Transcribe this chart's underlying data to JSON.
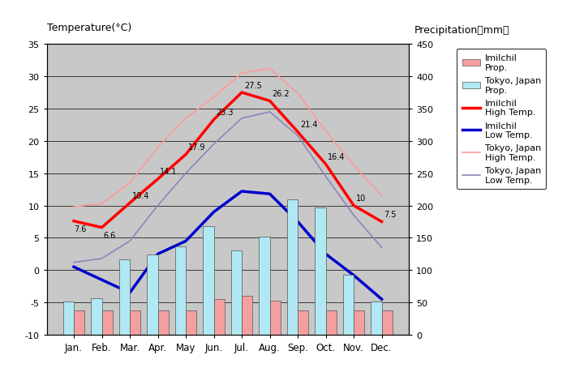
{
  "months": [
    "Jan.",
    "Feb.",
    "Mar.",
    "Apr.",
    "May",
    "Jun.",
    "Jul.",
    "Aug.",
    "Sep.",
    "Oct.",
    "Nov.",
    "Dec."
  ],
  "imilchil_high": [
    7.6,
    6.6,
    10.4,
    14.1,
    17.9,
    23.3,
    27.5,
    26.2,
    21.4,
    16.4,
    10.0,
    7.5
  ],
  "imilchil_low": [
    0.5,
    -1.5,
    -3.5,
    2.5,
    4.5,
    9.0,
    12.2,
    11.8,
    7.5,
    2.5,
    -0.8,
    -4.5
  ],
  "tokyo_high": [
    9.8,
    10.3,
    13.5,
    19.0,
    23.5,
    26.8,
    30.5,
    31.2,
    27.4,
    21.5,
    16.2,
    11.5
  ],
  "tokyo_low": [
    1.2,
    1.8,
    4.5,
    10.0,
    15.0,
    19.5,
    23.5,
    24.5,
    20.8,
    14.5,
    8.5,
    3.5
  ],
  "imilchil_precip_mm": [
    38,
    38,
    38,
    38,
    38,
    55,
    60,
    53,
    38,
    38,
    38,
    38
  ],
  "tokyo_precip_mm": [
    52,
    56,
    117,
    124,
    137,
    168,
    130,
    152,
    209,
    197,
    93,
    51
  ],
  "ylim_temp": [
    -10,
    35
  ],
  "ylim_precip": [
    0,
    450
  ],
  "bg_color": "#c8c8c8",
  "fig_color": "#ffffff",
  "imilchil_precip_color": "#f4a0a0",
  "tokyo_precip_color": "#b0e8f4",
  "imilchil_high_color": "#ff0000",
  "imilchil_low_color": "#0000cc",
  "tokyo_high_color": "#ff9999",
  "tokyo_low_color": "#8888bb",
  "title_left": "Temperature(°C)",
  "title_right": "Precipitation（mm）",
  "annotations": [
    [
      0,
      7.6,
      "7.6"
    ],
    [
      1,
      6.6,
      "6.6"
    ],
    [
      2,
      10.4,
      "10.4"
    ],
    [
      3,
      14.1,
      "14.1"
    ],
    [
      4,
      17.9,
      "17.9"
    ],
    [
      5,
      23.3,
      "23.3"
    ],
    [
      6,
      27.5,
      "27.5"
    ],
    [
      7,
      26.2,
      "26.2"
    ],
    [
      8,
      21.4,
      "21.4"
    ],
    [
      9,
      16.4,
      "16.4"
    ],
    [
      10,
      10.0,
      "10"
    ],
    [
      11,
      7.5,
      "7.5"
    ]
  ],
  "legend_labels": [
    "Imilchil\nProp.",
    "Tokyo, Japan\nProp.",
    "Imilchil\nHigh Temp.",
    "Imilchil\nLow Temp.",
    "Tokyo, Japan\nHigh Temp.",
    "Tokyo, Japan\nLow Temp."
  ],
  "temp_ticks": [
    -10,
    -5,
    0,
    5,
    10,
    15,
    20,
    25,
    30,
    35
  ],
  "precip_ticks": [
    0,
    50,
    100,
    150,
    200,
    250,
    300,
    350,
    400,
    450
  ]
}
